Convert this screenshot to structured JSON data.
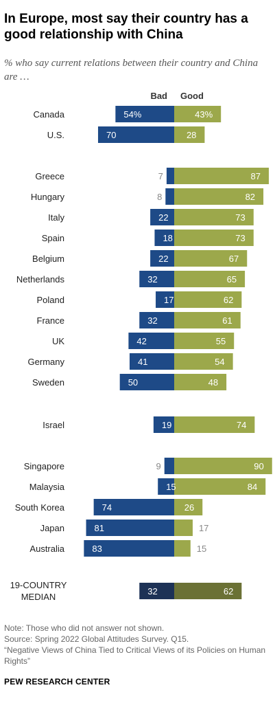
{
  "title": "In Europe, most say their country has a good relationship with China",
  "subtitle": "% who say current relations between their country and China are …",
  "notes": [
    "Note: Those who did not answer not shown.",
    "Source: Spring 2022 Global Attitudes Survey. Q15.",
    "“Negative Views of China Tied to Critical Views of its Policies on Human Rights”"
  ],
  "source_org": "PEW RESEARCH CENTER",
  "colors": {
    "bad": "#1e4a87",
    "good": "#9ca84b",
    "bad_median": "#1d3256",
    "good_median": "#6b7135",
    "label_outside": "#888888",
    "label_inside": "#ffffff"
  },
  "chart_data": {
    "type": "bar",
    "orientation": "horizontal-diverging",
    "series": [
      {
        "name": "Bad",
        "values": [
          54,
          70,
          7,
          8,
          22,
          18,
          22,
          32,
          17,
          32,
          42,
          41,
          50,
          19,
          9,
          15,
          74,
          81,
          83,
          32
        ]
      },
      {
        "name": "Good",
        "values": [
          43,
          28,
          87,
          82,
          73,
          73,
          67,
          65,
          62,
          61,
          55,
          54,
          48,
          74,
          90,
          84,
          26,
          17,
          15,
          62
        ]
      }
    ],
    "categories": [
      "Canada",
      "U.S.",
      "Greece",
      "Hungary",
      "Italy",
      "Spain",
      "Belgium",
      "Netherlands",
      "Poland",
      "France",
      "UK",
      "Germany",
      "Sweden",
      "Israel",
      "Singapore",
      "Malaysia",
      "South Korea",
      "Japan",
      "Australia",
      "19-COUNTRY MEDIAN"
    ],
    "value_labels": {
      "bad": [
        "54%",
        "70",
        "7",
        "8",
        "22",
        "18",
        "22",
        "32",
        "17",
        "32",
        "42",
        "41",
        "50",
        "19",
        "9",
        "15",
        "74",
        "81",
        "83",
        "32"
      ],
      "good": [
        "43%",
        "28",
        "87",
        "82",
        "73",
        "73",
        "67",
        "65",
        "62",
        "61",
        "55",
        "54",
        "48",
        "74",
        "90",
        "84",
        "26",
        "17",
        "15",
        "62"
      ]
    },
    "groups": [
      [
        0,
        1
      ],
      [
        2,
        3,
        4,
        5,
        6,
        7,
        8,
        9,
        10,
        11,
        12
      ],
      [
        13
      ],
      [
        14,
        15,
        16,
        17,
        18
      ],
      [
        19
      ]
    ],
    "median_index": 19,
    "median_label_lines": [
      "19-COUNTRY",
      "MEDIAN"
    ],
    "xlim": [
      0,
      100
    ]
  }
}
